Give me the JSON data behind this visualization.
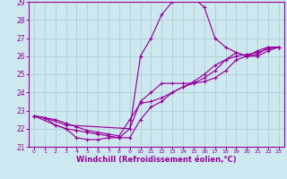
{
  "bg_color": "#cde8ef",
  "line_color": "#990099",
  "grid_color": "#aacccc",
  "xlim": [
    -0.5,
    23.5
  ],
  "ylim": [
    21,
    29
  ],
  "xlabel": "Windchill (Refroidissement éolien,°C)",
  "xlabel_fontsize": 6.0,
  "xticks": [
    0,
    1,
    2,
    3,
    4,
    5,
    6,
    7,
    8,
    9,
    10,
    11,
    12,
    13,
    14,
    15,
    16,
    17,
    18,
    19,
    20,
    21,
    22,
    23
  ],
  "yticks": [
    21,
    22,
    23,
    24,
    25,
    26,
    27,
    28,
    29
  ],
  "curve1_x": [
    0,
    1,
    2,
    3,
    4,
    5,
    6,
    7,
    8,
    9,
    10,
    11,
    12,
    13,
    14,
    15,
    16,
    17,
    18,
    19,
    20,
    21,
    22,
    23
  ],
  "curve1_y": [
    22.7,
    22.6,
    22.2,
    22.0,
    21.5,
    21.4,
    21.4,
    21.5,
    21.5,
    22.0,
    26.0,
    27.0,
    28.3,
    29.0,
    29.2,
    29.2,
    28.7,
    27.0,
    26.5,
    26.2,
    26.0,
    26.3,
    26.5,
    26.5
  ],
  "curve2_x": [
    0,
    1,
    3,
    9,
    10,
    11,
    12,
    13,
    14,
    15,
    16,
    17,
    18,
    19,
    20,
    21,
    22,
    23
  ],
  "curve2_y": [
    22.7,
    22.6,
    22.2,
    22.0,
    23.5,
    24.0,
    24.5,
    24.5,
    24.5,
    24.5,
    24.6,
    24.8,
    25.2,
    25.8,
    26.0,
    26.1,
    26.5,
    26.5
  ],
  "curve3_x": [
    0,
    1,
    2,
    3,
    4,
    5,
    6,
    7,
    8,
    9,
    10,
    11,
    12,
    13,
    14,
    15,
    16,
    17,
    18,
    19,
    20,
    21,
    22,
    23
  ],
  "curve3_y": [
    22.7,
    22.6,
    22.5,
    22.3,
    22.1,
    21.9,
    21.8,
    21.7,
    21.6,
    22.5,
    23.4,
    23.5,
    23.7,
    24.0,
    24.3,
    24.6,
    25.0,
    25.5,
    25.8,
    26.0,
    26.1,
    26.2,
    26.4,
    26.5
  ],
  "curve4_x": [
    0,
    2,
    3,
    4,
    5,
    6,
    7,
    8,
    9,
    10,
    11,
    12,
    13,
    14,
    15,
    16,
    17,
    18,
    19,
    20,
    21,
    22,
    23
  ],
  "curve4_y": [
    22.7,
    22.2,
    22.0,
    21.9,
    21.8,
    21.7,
    21.6,
    21.5,
    21.5,
    22.5,
    23.2,
    23.5,
    24.0,
    24.3,
    24.5,
    24.8,
    25.2,
    25.8,
    26.2,
    26.0,
    26.0,
    26.3,
    26.5
  ]
}
